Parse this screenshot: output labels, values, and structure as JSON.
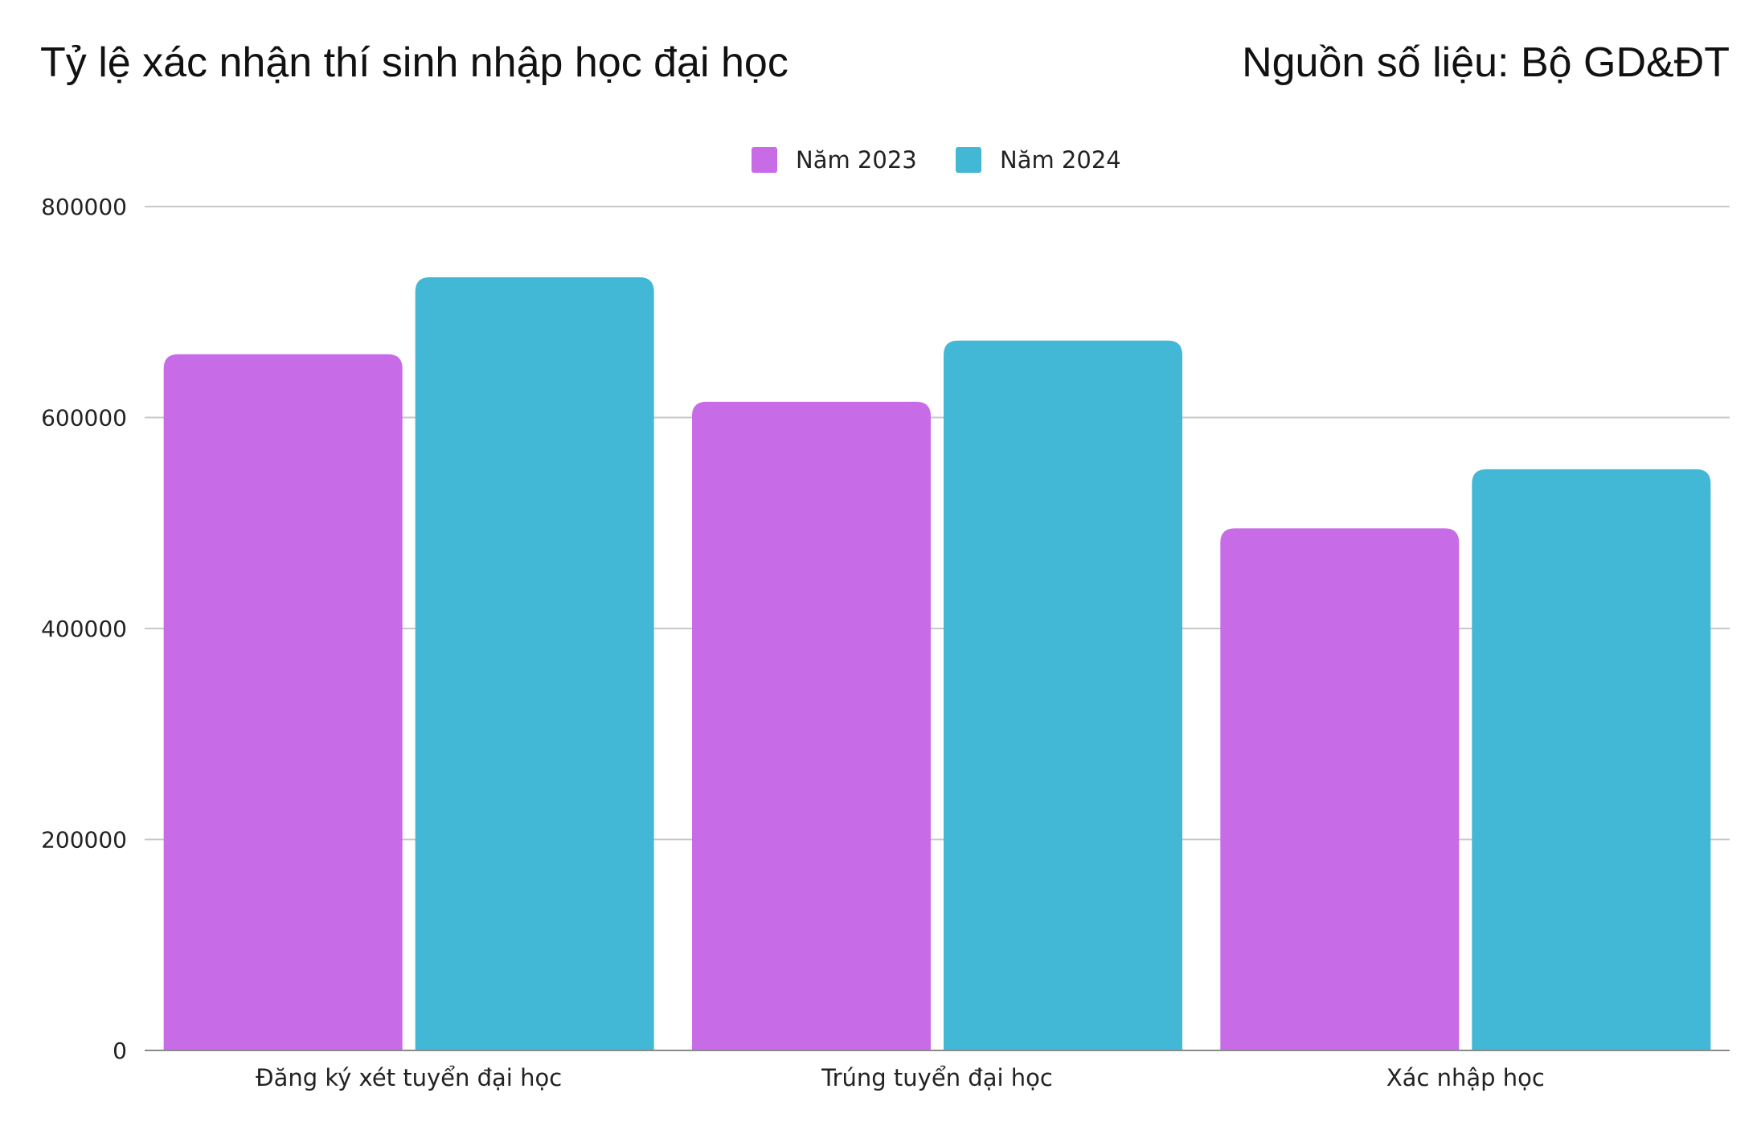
{
  "header": {
    "title": "Tỷ lệ xác nhận thí sinh nhập học đại học",
    "source": "Nguồn số liệu: Bộ GD&ĐT"
  },
  "chart_data": {
    "type": "bar",
    "categories": [
      "Đăng ký xét tuyển đại học",
      "Trúng tuyển đại học",
      "Xác nhập học"
    ],
    "series": [
      {
        "name": "Năm 2023",
        "color": "#c86be6",
        "values": [
          660000,
          615000,
          495000
        ]
      },
      {
        "name": "Năm 2024",
        "color": "#42b7d6",
        "values": [
          733000,
          673000,
          551000
        ]
      }
    ],
    "yticks": [
      0,
      200000,
      400000,
      600000,
      800000
    ],
    "ylim": [
      0,
      800000
    ],
    "grid": true,
    "legend_position": "top-center"
  }
}
